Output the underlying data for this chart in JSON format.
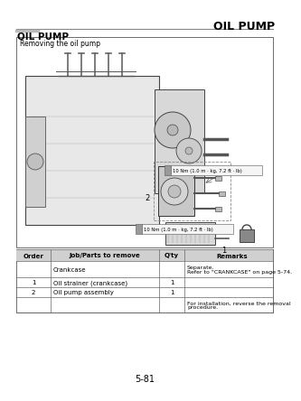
{
  "page_header_right": "OIL PUMP",
  "section_title": "OIL PUMP",
  "subsection_title": "Removing the oil pump",
  "torque_note_1": "10 Nm (1.0 m · kg, 7.2 ft · lb)",
  "torque_note_2": "10 Nm (1.0 m · kg, 7.2 ft · lb)",
  "table_headers": [
    "Order",
    "Job/Parts to remove",
    "Q'ty",
    "Remarks"
  ],
  "table_rows": [
    [
      "",
      "Crankcase",
      "",
      "Separate.\nRefer to \"CRANKCASE\" on page 5-74."
    ],
    [
      "1",
      "Oil strainer (crankcase)",
      "1",
      ""
    ],
    [
      "2",
      "Oil pump assembly",
      "1",
      ""
    ],
    [
      "",
      "",
      "",
      "For installation, reverse the removal\nprocedure."
    ]
  ],
  "page_number": "5-81",
  "bg_color": "#ffffff",
  "text_color": "#000000",
  "diagram_bg": "#ffffff",
  "table_header_bg": "#d8d8d8"
}
